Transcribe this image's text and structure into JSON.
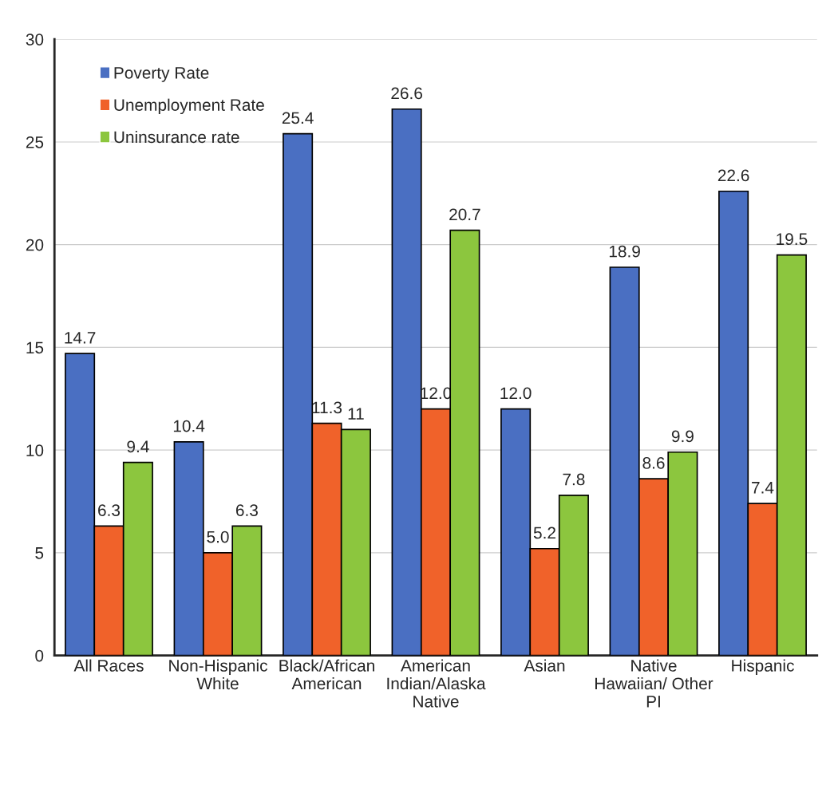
{
  "chart_data": {
    "type": "bar",
    "categories": [
      "All Races",
      "Non-Hispanic\nWhite",
      "Black/African\nAmerican",
      "American\nIndian/Alaska\nNative",
      "Asian",
      "Native\nHawaiian/ Other\nPI",
      "Hispanic"
    ],
    "series": [
      {
        "name": "Poverty Rate",
        "color": "#4a6fc2",
        "values": [
          14.7,
          10.4,
          25.4,
          26.6,
          12.0,
          18.9,
          22.6
        ],
        "value_labels": [
          "14.7",
          "10.4",
          "25.4",
          "26.6",
          "12.0",
          "18.9",
          "22.6"
        ]
      },
      {
        "name": "Unemployment Rate",
        "color": "#f0622a",
        "values": [
          6.3,
          5.0,
          11.3,
          12.0,
          5.2,
          8.6,
          7.4
        ],
        "value_labels": [
          "6.3",
          "5.0",
          "11.3",
          "12.0",
          "5.2",
          "8.6",
          "7.4"
        ]
      },
      {
        "name": "Uninsurance rate",
        "color": "#8cc63e",
        "values": [
          9.4,
          6.3,
          11,
          20.7,
          7.8,
          9.9,
          19.5
        ],
        "value_labels": [
          "9.4",
          "6.3",
          "11",
          "20.7",
          "7.8",
          "9.9",
          "19.5"
        ]
      }
    ],
    "ylim": [
      0,
      30
    ],
    "yticks": [
      0,
      5,
      10,
      15,
      20,
      25,
      30
    ],
    "grid": "y",
    "legend": "top left"
  }
}
